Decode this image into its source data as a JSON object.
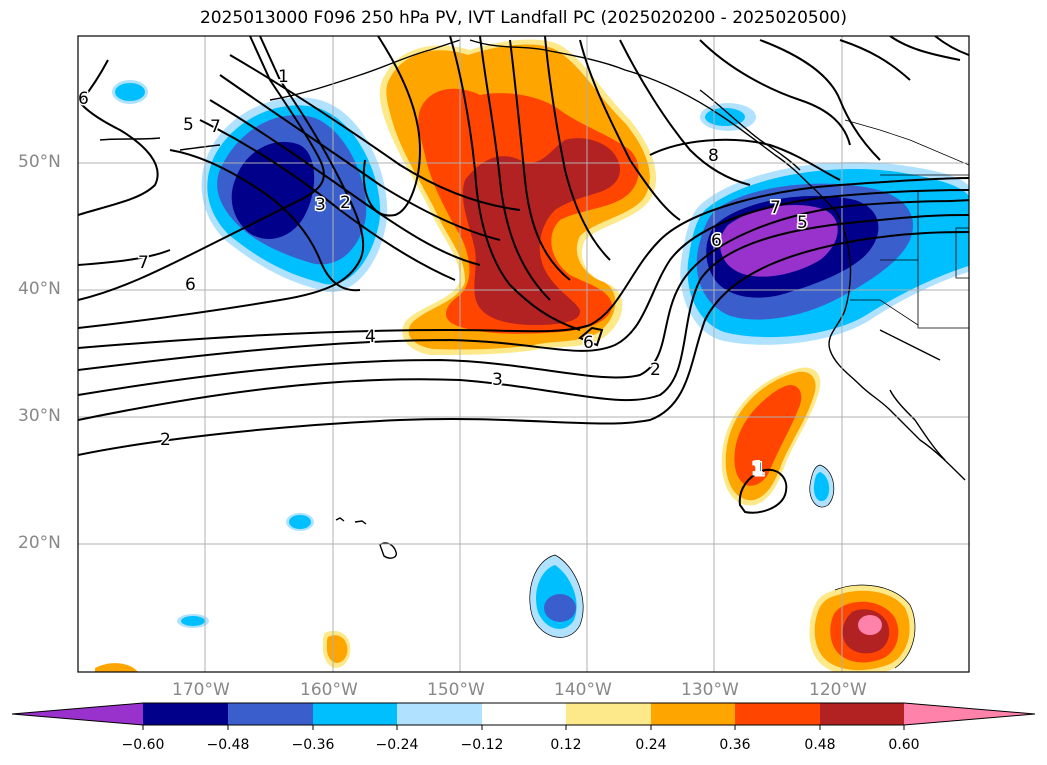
{
  "title": "2025013000 F096 250 hPa PV, IVT Landfall PC (2025020200 - 2025020500)",
  "axes": {
    "lat_labels": [
      "50°N",
      "40°N",
      "30°N",
      "20°N"
    ],
    "lon_labels": [
      "170°W",
      "160°W",
      "150°W",
      "140°W",
      "130°W",
      "120°W"
    ]
  },
  "colorbar": {
    "tick_labels": [
      "−0.60",
      "−0.48",
      "−0.36",
      "−0.24",
      "−0.12",
      "0.12",
      "0.24",
      "0.36",
      "0.48",
      "0.60"
    ],
    "colors": [
      "#9932cc",
      "#00008b",
      "#3a5fcd",
      "#00bfff",
      "#b0e2ff",
      "#ffffff",
      "#fde98a",
      "#ffa500",
      "#ff4500",
      "#b22222",
      "#ff82ab"
    ]
  },
  "contour_labels": [
    "1",
    "5",
    "7",
    "2",
    "3",
    "7",
    "6",
    "4",
    "3",
    "2",
    "6",
    "8",
    "7",
    "5",
    "6",
    "2",
    "1",
    "1",
    "6"
  ]
}
